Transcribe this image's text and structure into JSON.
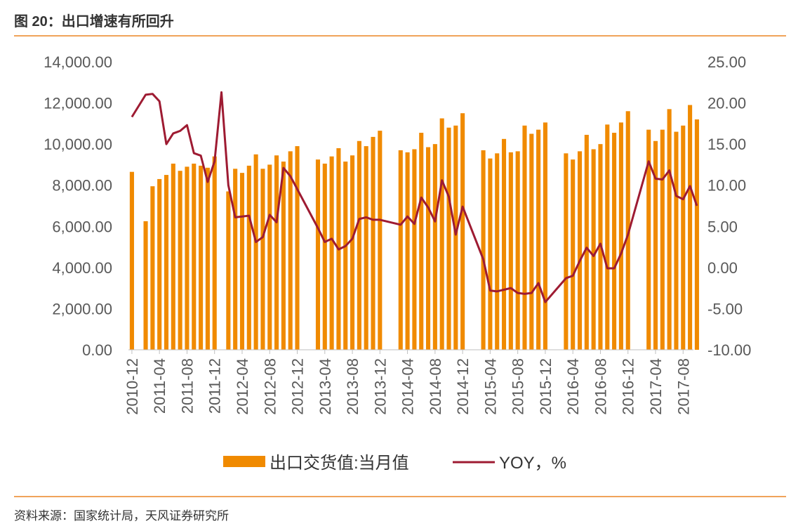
{
  "title": "图 20：出口增速有所回升",
  "source": "资料来源：国家统计局，天风证券研究所",
  "colors": {
    "bar": "#f08a00",
    "line": "#9e1b32",
    "rule": "#f0a35a"
  },
  "chart_data": {
    "type": "bar+line",
    "legend": [
      "出口交货值:当月值",
      "YOY，%"
    ],
    "legend_placement": "bottom-center",
    "grid": false,
    "y_left": {
      "min": 0,
      "max": 14000,
      "ticks": [
        "0.00",
        "2,000.00",
        "4,000.00",
        "6,000.00",
        "8,000.00",
        "10,000.00",
        "12,000.00",
        "14,000.00"
      ]
    },
    "y_right": {
      "min": -10,
      "max": 25,
      "ticks": [
        "-10.00",
        "-5.00",
        "0.00",
        "5.00",
        "10.00",
        "15.00",
        "20.00",
        "25.00"
      ]
    },
    "x_tick_labels": [
      "2010-12",
      "2011-04",
      "2011-08",
      "2011-12",
      "2012-04",
      "2012-08",
      "2012-12",
      "2013-04",
      "2013-08",
      "2013-12",
      "2014-04",
      "2014-08",
      "2014-12",
      "2015-04",
      "2015-08",
      "2015-12",
      "2016-04",
      "2016-08",
      "2016-12",
      "2017-04",
      "2017-08"
    ],
    "x_tick_index": [
      0,
      4,
      8,
      12,
      16,
      20,
      24,
      28,
      32,
      36,
      40,
      44,
      48,
      52,
      56,
      60,
      64,
      68,
      72,
      76,
      80
    ],
    "n_periods": 82,
    "series": [
      {
        "name": "出口交货值:当月值",
        "type": "bar",
        "values": [
          8650,
          null,
          6250,
          7950,
          8300,
          8500,
          9050,
          8700,
          8900,
          9050,
          8950,
          8850,
          9400,
          null,
          7700,
          8800,
          8600,
          8950,
          9500,
          8800,
          9000,
          9450,
          9150,
          9650,
          9900,
          null,
          null,
          9250,
          9050,
          9400,
          9800,
          9150,
          9450,
          10150,
          9900,
          10350,
          10650,
          null,
          null,
          9700,
          9600,
          9750,
          10550,
          9850,
          10000,
          11250,
          10800,
          10900,
          11500,
          null,
          null,
          9700,
          9300,
          9550,
          10250,
          9600,
          9650,
          10900,
          10500,
          10700,
          11050,
          null,
          null,
          9550,
          9250,
          9650,
          10450,
          9750,
          10000,
          10950,
          10550,
          11050,
          11600,
          null,
          null,
          10700,
          10150,
          10700,
          11700,
          10600,
          10900,
          11900,
          11200
        ]
      },
      {
        "name": "YOY，%",
        "type": "line",
        "values": [
          18.3,
          null,
          21.0,
          21.1,
          20.2,
          15.0,
          16.3,
          16.6,
          17.3,
          13.9,
          13.6,
          10.4,
          12.9,
          21.3,
          10.0,
          6.1,
          6.2,
          6.3,
          3.1,
          3.7,
          6.4,
          5.5,
          12.1,
          11.1,
          null,
          null,
          null,
          4.8,
          3.1,
          3.5,
          2.2,
          2.6,
          3.5,
          5.9,
          6.1,
          5.8,
          5.8,
          null,
          null,
          5.2,
          6.2,
          5.3,
          8.5,
          7.3,
          5.6,
          10.6,
          8.6,
          4.0,
          7.4,
          null,
          null,
          1.0,
          -2.8,
          -2.9,
          -2.7,
          -2.5,
          -3.1,
          -3.2,
          -3.1,
          -1.9,
          -4.2,
          null,
          null,
          -1.3,
          -1.0,
          0.8,
          2.4,
          1.4,
          2.9,
          -0.1,
          -0.1,
          1.7,
          4.0,
          null,
          null,
          12.9,
          10.8,
          10.7,
          11.8,
          8.7,
          8.3,
          9.9,
          7.5
        ]
      }
    ]
  }
}
